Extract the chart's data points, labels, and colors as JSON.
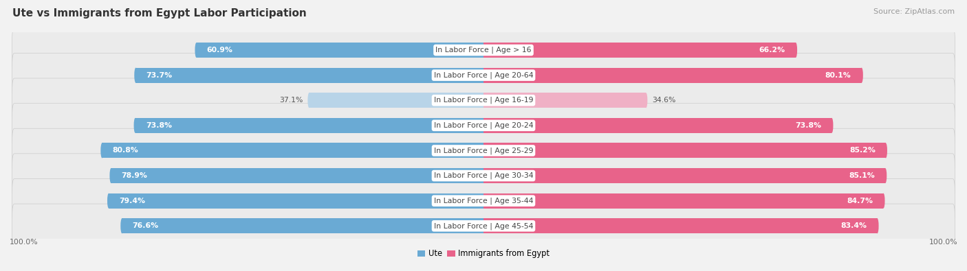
{
  "title": "Ute vs Immigrants from Egypt Labor Participation",
  "source": "Source: ZipAtlas.com",
  "categories": [
    "In Labor Force | Age > 16",
    "In Labor Force | Age 20-64",
    "In Labor Force | Age 16-19",
    "In Labor Force | Age 20-24",
    "In Labor Force | Age 25-29",
    "In Labor Force | Age 30-34",
    "In Labor Force | Age 35-44",
    "In Labor Force | Age 45-54"
  ],
  "ute_values": [
    60.9,
    73.7,
    37.1,
    73.8,
    80.8,
    78.9,
    79.4,
    76.6
  ],
  "egypt_values": [
    66.2,
    80.1,
    34.6,
    73.8,
    85.2,
    85.1,
    84.7,
    83.4
  ],
  "ute_color_dark": "#6aaad4",
  "ute_color_light": "#b8d4e8",
  "egypt_color_dark": "#e8638a",
  "egypt_color_light": "#f0b0c5",
  "row_bg_color": "#e8e8e8",
  "fig_bg_color": "#f2f2f2",
  "title_fontsize": 11,
  "source_fontsize": 8,
  "label_fontsize": 7.8,
  "value_fontsize": 7.8,
  "legend_ute": "Ute",
  "legend_egypt": "Immigrants from Egypt"
}
